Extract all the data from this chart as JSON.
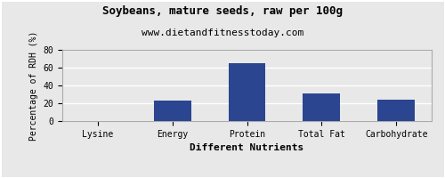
{
  "title": "Soybeans, mature seeds, raw per 100g",
  "subtitle": "www.dietandfitnesstoday.com",
  "xlabel": "Different Nutrients",
  "ylabel": "Percentage of RDH (%)",
  "categories": [
    "Lysine",
    "Energy",
    "Protein",
    "Total Fat",
    "Carbohydrate"
  ],
  "values": [
    0.5,
    23,
    65,
    31,
    24
  ],
  "bar_color": "#2b4590",
  "ylim": [
    0,
    80
  ],
  "yticks": [
    0,
    20,
    40,
    60,
    80
  ],
  "fig_background": "#e8e8e8",
  "plot_background": "#e8e8e8",
  "grid_color": "#ffffff",
  "title_fontsize": 9,
  "subtitle_fontsize": 8,
  "xlabel_fontsize": 8,
  "ylabel_fontsize": 7,
  "tick_fontsize": 7,
  "border_color": "#aaaaaa"
}
